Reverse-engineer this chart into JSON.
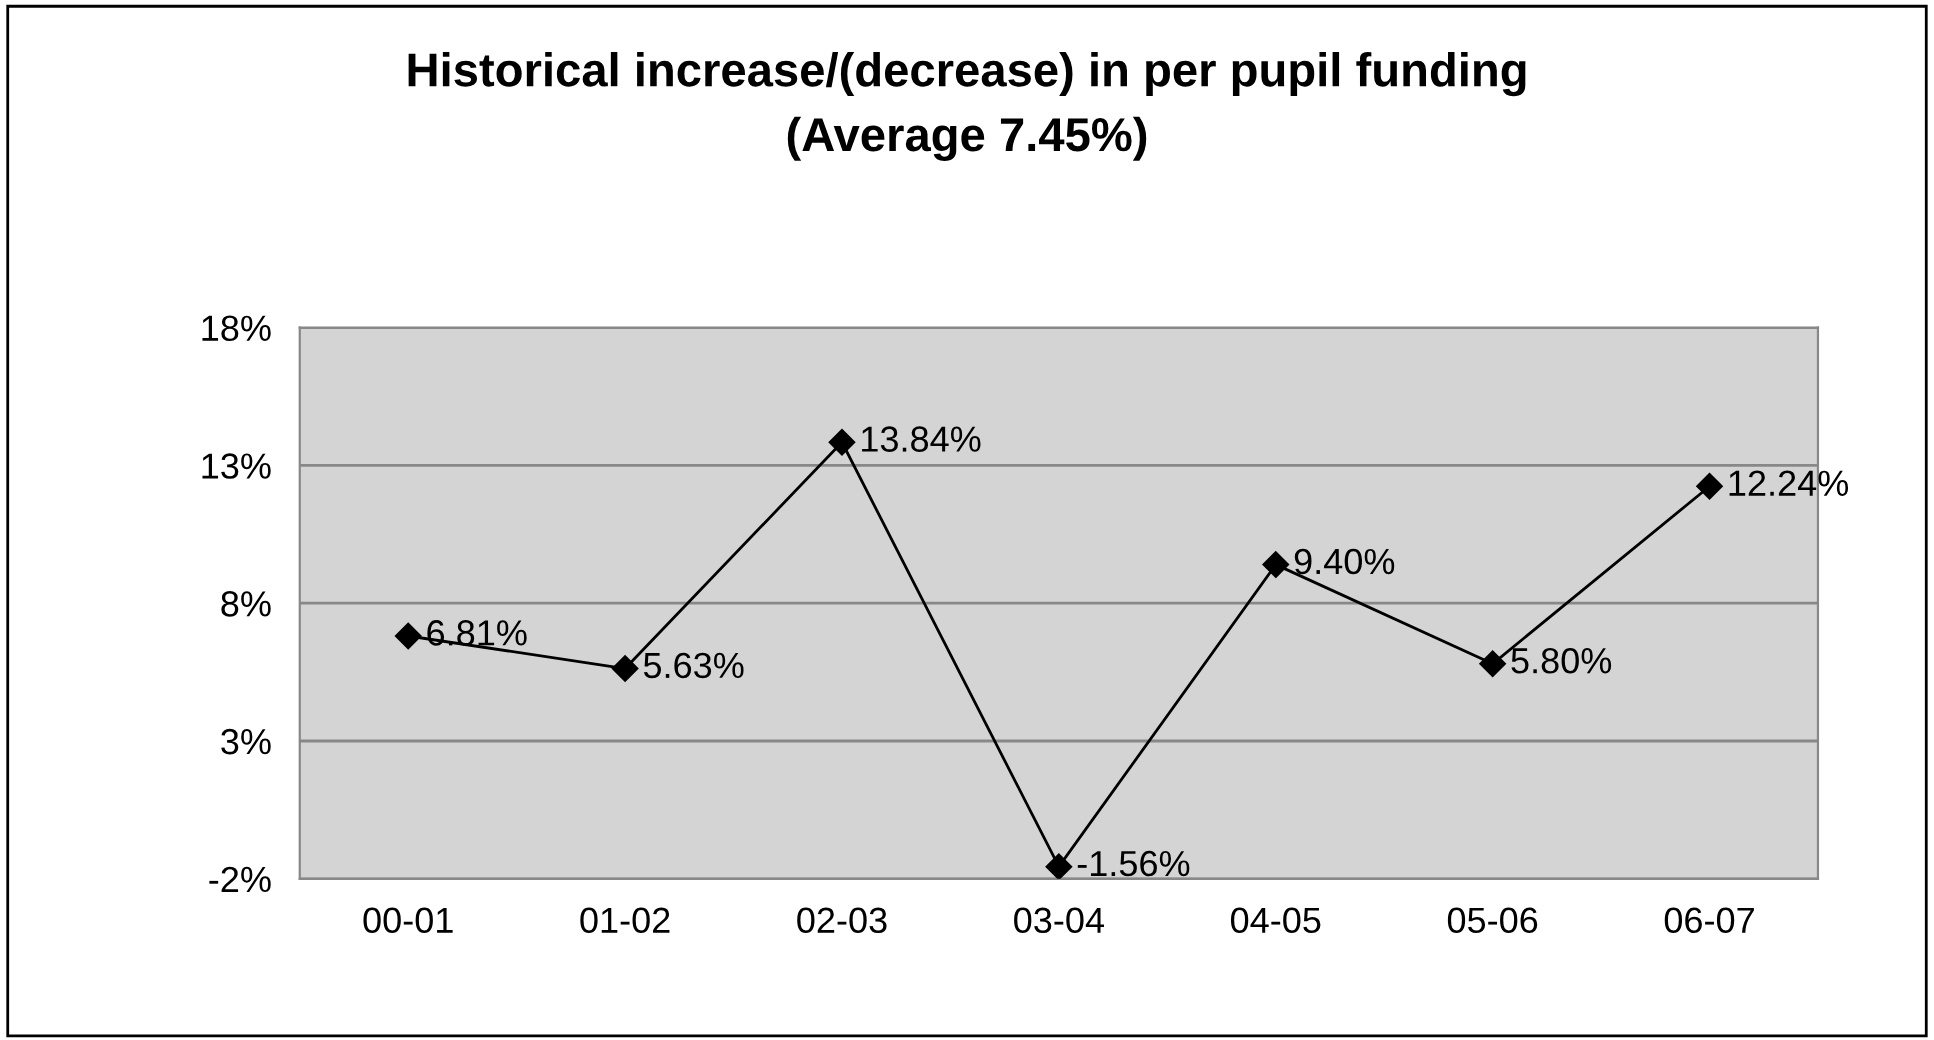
{
  "chart_data": {
    "type": "line",
    "title": "Historical increase/(decrease) in per pupil funding\n(Average 7.45%)",
    "categories": [
      "00-01",
      "01-02",
      "02-03",
      "03-04",
      "04-05",
      "05-06",
      "06-07"
    ],
    "series": [
      {
        "color": "#000000",
        "values": [
          6.81,
          5.63,
          13.84,
          -1.56,
          9.4,
          5.8,
          12.24
        ],
        "value_labels": [
          "6.81%",
          "5.63%",
          "13.84%",
          "-1.56%",
          "9.40%",
          "5.80%",
          "12.24%"
        ]
      }
    ],
    "ylim": [
      -2,
      18
    ],
    "yticks": [
      {
        "value": -2,
        "label": "-2%"
      },
      {
        "value": 3,
        "label": "3%"
      },
      {
        "value": 8,
        "label": "8%"
      },
      {
        "value": 13,
        "label": "13%"
      },
      {
        "value": 18,
        "label": "18%"
      }
    ],
    "grid": "y",
    "marker": "diamond",
    "line_style": "solid"
  }
}
